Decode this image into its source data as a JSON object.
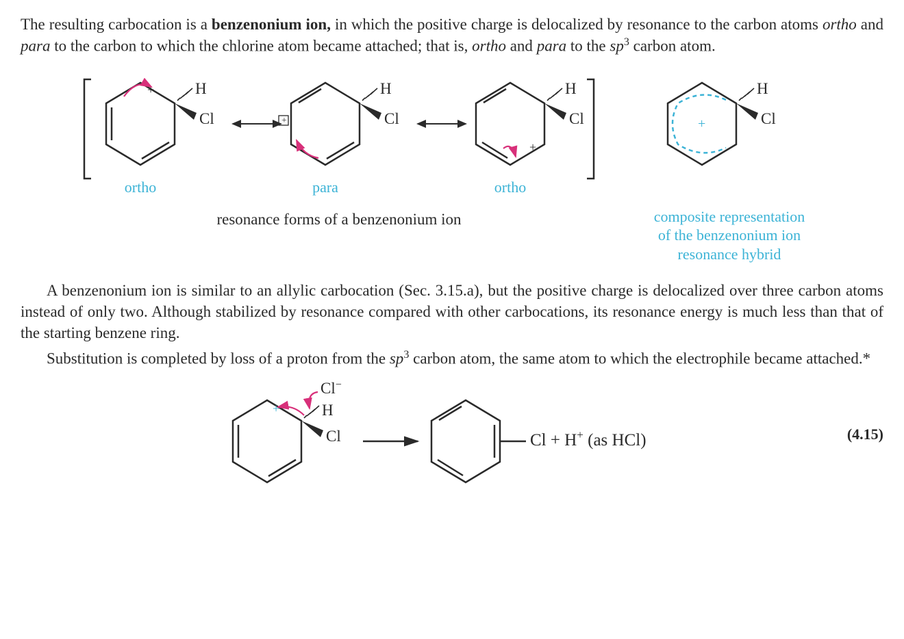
{
  "para1_html": "The resulting carbocation is a <span class=\"bold\">benzenonium ion,</span> in which the positive charge is de&shy;localized by resonance to the carbon atoms <span class=\"ital\">ortho</span> and <span class=\"ital\">para</span> to the carbon to which the chlorine atom became attached; that is, <span class=\"ital\">ortho</span> and <span class=\"ital\">para</span> to the <span class=\"ital\">sp</span><sup>3</sup> carbon atom.",
  "resonance": {
    "label1": "ortho",
    "label2": "para",
    "label3": "ortho",
    "caption": "resonance forms of a benzenonium ion",
    "composite_caption_l1": "composite representation",
    "composite_caption_l2": "of the benzenonium ion",
    "composite_caption_l3": "resonance hybrid",
    "atom_H": "H",
    "atom_Cl": "Cl",
    "plus": "+",
    "colors": {
      "ring": "#2a2a2a",
      "arrow": "#d8307a",
      "dashed": "#3cb3d6",
      "plus_blue": "#3cb3d6"
    }
  },
  "para2_html": "A benzenonium ion is similar to an allylic carbocation (Sec. 3.15.a), but the posi&shy;tive charge is delocalized over three carbon atoms instead of only two. Although sta&shy;bilized by resonance compared with other carbocations, its resonance energy is much less than that of the starting benzene ring.",
  "para3_html": "Substitution is completed by loss of a proton from the <span class=\"ital\">sp</span><sup>3</sup> carbon atom, the same atom to which the electrophile became attached.*",
  "eq": {
    "cl_minus": "Cl",
    "cl_minus_sup": "−",
    "H": "H",
    "Cl": "Cl",
    "product_text": "Cl + H",
    "product_sup": "+",
    "product_tail": " (as HCl)",
    "number": "(4.15)"
  }
}
